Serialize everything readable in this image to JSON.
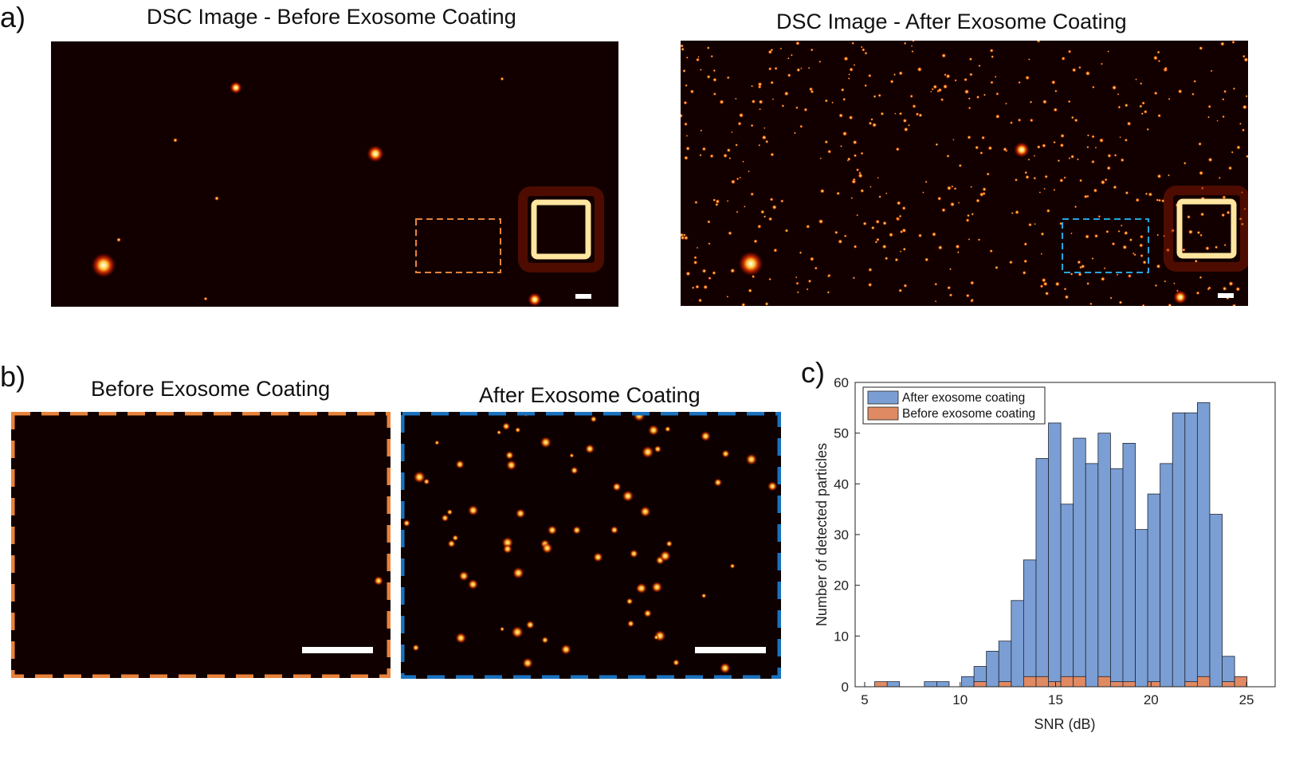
{
  "panel_a": {
    "label": "a)",
    "before_title": "DSC Image - Before Exosome Coating",
    "after_title": "DSC Image - After Exosome Coating",
    "roi_before_color": "#e8823a",
    "roi_after_color": "#26a6e0"
  },
  "panel_b": {
    "label": "b)",
    "before_title": "Before Exosome Coating",
    "after_title": "After Exosome Coating",
    "before_frame_color": "#e8823a",
    "after_frame_color": "#1a72bf"
  },
  "panel_c": {
    "label": "c)"
  },
  "chart_data": {
    "type": "bar",
    "xlabel": "SNR (dB)",
    "ylabel": "Number of detected particles",
    "xlim": [
      4.5,
      26.5
    ],
    "ylim": [
      0,
      60
    ],
    "xticks": [
      5,
      10,
      15,
      20,
      25
    ],
    "yticks": [
      0,
      10,
      20,
      30,
      40,
      50,
      60
    ],
    "bin_width": 0.65,
    "grid": false,
    "legend_position": "top-left",
    "series": [
      {
        "name": "After exosome coating",
        "color": "#7b9fd4",
        "bins": [
          {
            "x": 6.5,
            "v": 1
          },
          {
            "x": 8.45,
            "v": 1
          },
          {
            "x": 9.1,
            "v": 1
          },
          {
            "x": 10.4,
            "v": 2
          },
          {
            "x": 11.05,
            "v": 4
          },
          {
            "x": 11.7,
            "v": 7
          },
          {
            "x": 12.35,
            "v": 9
          },
          {
            "x": 13.0,
            "v": 17
          },
          {
            "x": 13.65,
            "v": 25
          },
          {
            "x": 14.3,
            "v": 45
          },
          {
            "x": 14.95,
            "v": 52
          },
          {
            "x": 15.6,
            "v": 36
          },
          {
            "x": 16.25,
            "v": 49
          },
          {
            "x": 16.9,
            "v": 44
          },
          {
            "x": 17.55,
            "v": 50
          },
          {
            "x": 18.2,
            "v": 43
          },
          {
            "x": 18.85,
            "v": 48
          },
          {
            "x": 19.5,
            "v": 31
          },
          {
            "x": 20.15,
            "v": 38
          },
          {
            "x": 20.8,
            "v": 44
          },
          {
            "x": 21.45,
            "v": 54
          },
          {
            "x": 22.1,
            "v": 54
          },
          {
            "x": 22.75,
            "v": 56
          },
          {
            "x": 23.4,
            "v": 34
          },
          {
            "x": 24.05,
            "v": 6
          }
        ]
      },
      {
        "name": "Before exosome coating",
        "color": "#e08a63",
        "bins": [
          {
            "x": 5.85,
            "v": 1
          },
          {
            "x": 11.05,
            "v": 1
          },
          {
            "x": 12.35,
            "v": 1
          },
          {
            "x": 13.65,
            "v": 2
          },
          {
            "x": 14.3,
            "v": 2
          },
          {
            "x": 14.95,
            "v": 1
          },
          {
            "x": 15.6,
            "v": 2
          },
          {
            "x": 16.25,
            "v": 2
          },
          {
            "x": 17.55,
            "v": 2
          },
          {
            "x": 18.2,
            "v": 1
          },
          {
            "x": 18.85,
            "v": 1
          },
          {
            "x": 20.15,
            "v": 1
          },
          {
            "x": 22.1,
            "v": 1
          },
          {
            "x": 22.75,
            "v": 2
          },
          {
            "x": 24.05,
            "v": 1
          },
          {
            "x": 24.7,
            "v": 2
          }
        ]
      }
    ]
  }
}
